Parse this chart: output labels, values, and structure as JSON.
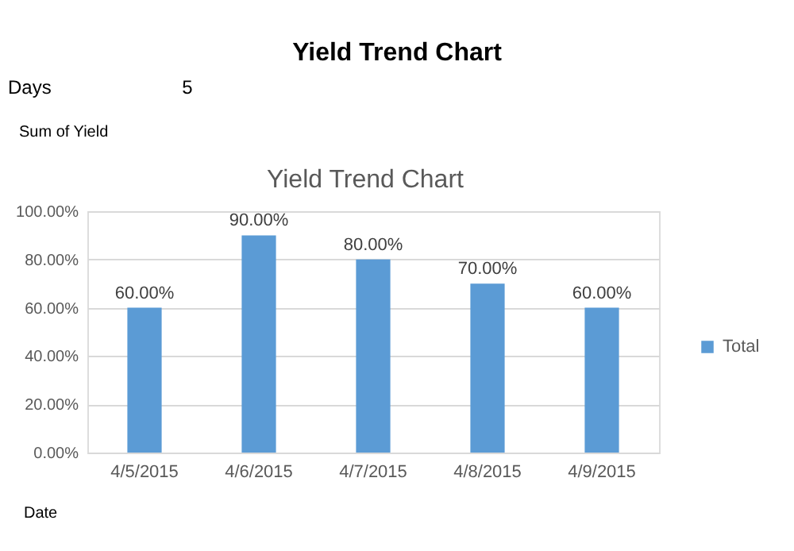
{
  "chart_data": {
    "type": "bar",
    "title": "Yield Trend Chart",
    "categories": [
      "4/5/2015",
      "4/6/2015",
      "4/7/2015",
      "4/8/2015",
      "4/9/2015"
    ],
    "series": [
      {
        "name": "Total",
        "color": "#5b9bd5",
        "values": [
          60,
          90,
          80,
          70,
          60
        ],
        "value_labels": [
          "60.00%",
          "90.00%",
          "80.00%",
          "70.00%",
          "60.00%"
        ]
      }
    ],
    "ylim": [
      0,
      100
    ],
    "yticks": [
      {
        "value": 0,
        "label": "0.00%"
      },
      {
        "value": 20,
        "label": "20.00%"
      },
      {
        "value": 40,
        "label": "40.00%"
      },
      {
        "value": 60,
        "label": "60.00%"
      },
      {
        "value": 80,
        "label": "80.00%"
      },
      {
        "value": 100,
        "label": "100.00%"
      }
    ],
    "grid": "y",
    "legend": "right",
    "annotations": [
      "Yield Trend Chart",
      "Days",
      "5",
      "Sum of Yield",
      "Date"
    ]
  }
}
